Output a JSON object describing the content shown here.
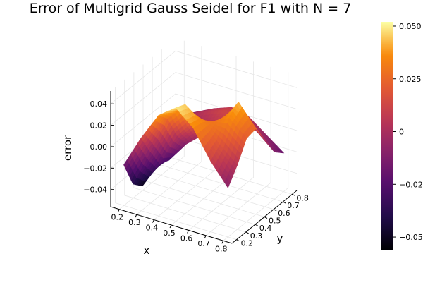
{
  "chart_data": {
    "type": "surface",
    "title": "Error of Multigrid Gauss Seidel for F1 with N = 7",
    "xlabel": "x",
    "ylabel": "y",
    "zlabel": "error",
    "x_ticks": [
      "0.2",
      "0.3",
      "0.4",
      "0.5",
      "0.6",
      "0.7",
      "0.8"
    ],
    "y_ticks": [
      "0.2",
      "0.3",
      "0.4",
      "0.5",
      "0.6",
      "0.7",
      "0.8"
    ],
    "z_ticks": [
      "−0.04",
      "−0.02",
      "0.00",
      "0.02",
      "0.04"
    ],
    "colorbar_ticks": [
      "−0.05",
      "−0.025",
      "0",
      "0.025",
      "0.050"
    ],
    "xlim": [
      0.15,
      0.85
    ],
    "ylim": [
      0.15,
      0.85
    ],
    "zlim": [
      -0.056,
      0.052
    ],
    "colormap": "inferno",
    "grid_n": 7,
    "grid": [
      [
        -0.018,
        -0.043,
        -0.052,
        -0.04,
        -0.018,
        -0.004,
        -0.014
      ],
      [
        0.012,
        -0.008,
        -0.026,
        -0.03,
        -0.016,
        -0.002,
        -0.006
      ],
      [
        0.038,
        0.028,
        0.005,
        -0.01,
        -0.004,
        0.006,
        0.002
      ],
      [
        0.05,
        0.046,
        0.024,
        0.004,
        0.005,
        0.012,
        0.008
      ],
      [
        0.036,
        0.034,
        0.028,
        0.02,
        0.016,
        0.013,
        0.004
      ],
      [
        0.01,
        0.018,
        0.036,
        0.044,
        0.022,
        0.002,
        -0.008
      ],
      [
        -0.01,
        0.004,
        0.022,
        0.024,
        0.006,
        -0.012,
        -0.02
      ]
    ]
  }
}
